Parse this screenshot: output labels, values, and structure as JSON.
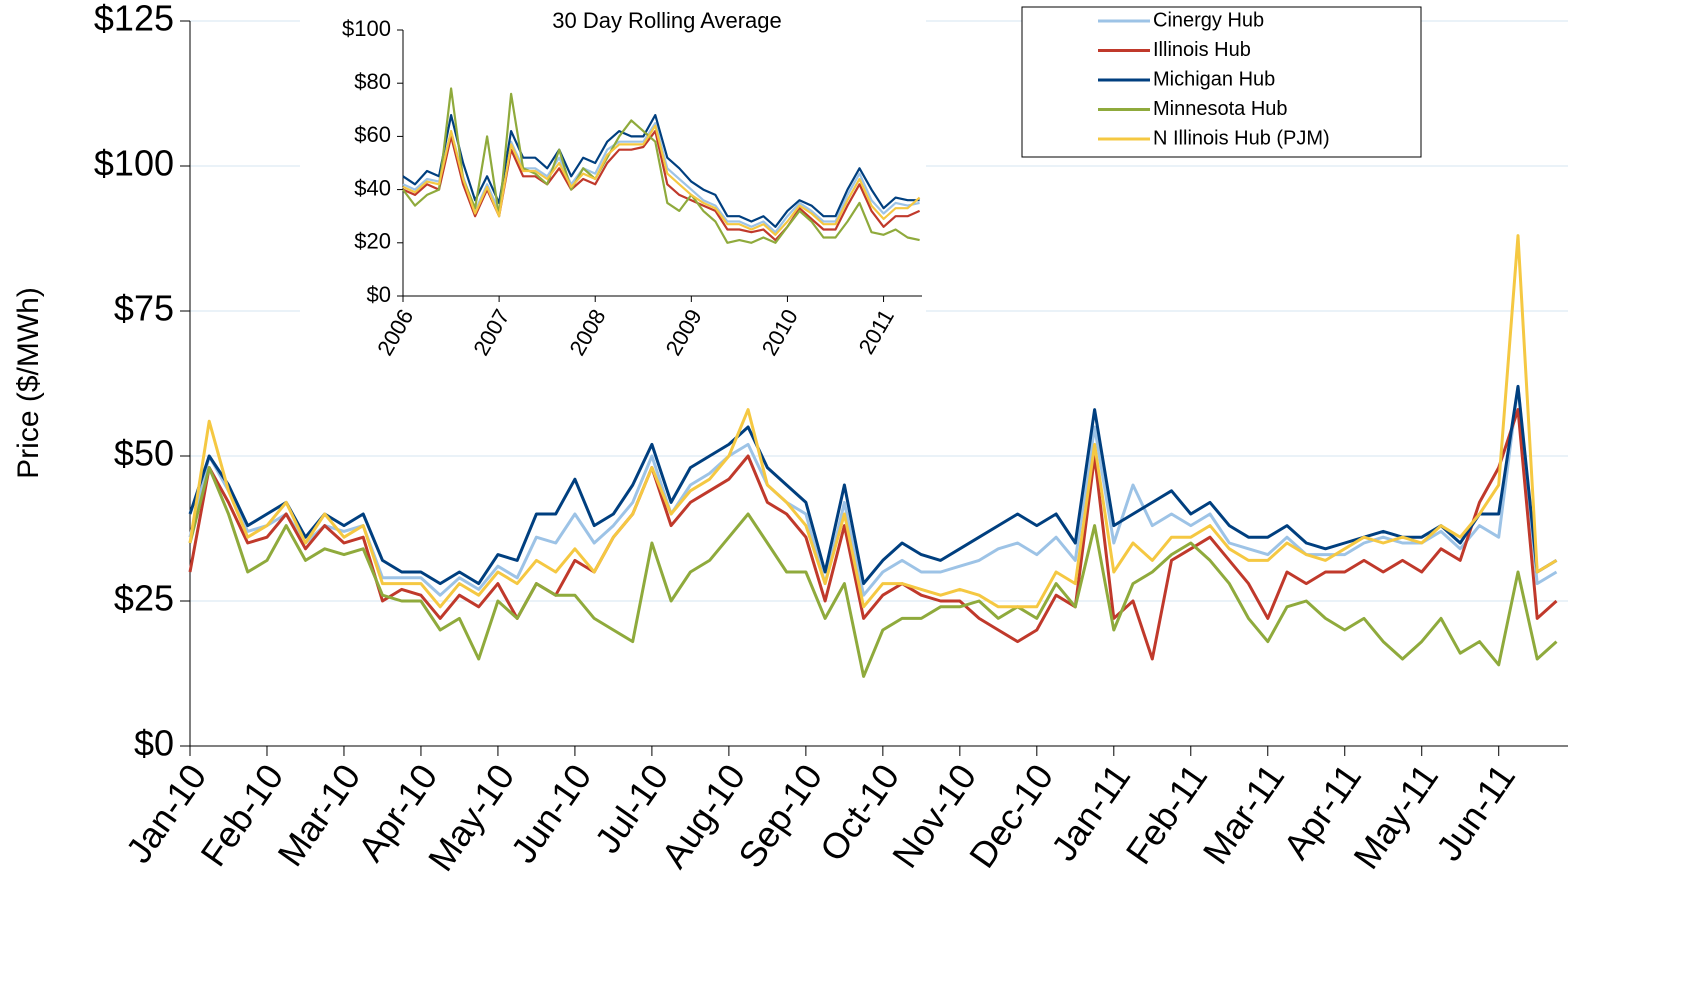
{
  "chart_data": [
    {
      "type": "line",
      "y_label": "Price ($/MWh)",
      "xlim": [
        0,
        17.9
      ],
      "xticks": [
        {
          "value": 0,
          "label": "Jan-10"
        },
        {
          "value": 1,
          "label": "Feb-10"
        },
        {
          "value": 2,
          "label": "Mar-10"
        },
        {
          "value": 3,
          "label": "Apr-10"
        },
        {
          "value": 4,
          "label": "May-10"
        },
        {
          "value": 5,
          "label": "Jun-10"
        },
        {
          "value": 6,
          "label": "Jul-10"
        },
        {
          "value": 7,
          "label": "Aug-10"
        },
        {
          "value": 8,
          "label": "Sep-10"
        },
        {
          "value": 9,
          "label": "Oct-10"
        },
        {
          "value": 10,
          "label": "Nov-10"
        },
        {
          "value": 11,
          "label": "Dec-10"
        },
        {
          "value": 12,
          "label": "Jan-11"
        },
        {
          "value": 13,
          "label": "Feb-11"
        },
        {
          "value": 14,
          "label": "Mar-11"
        },
        {
          "value": 15,
          "label": "Apr-11"
        },
        {
          "value": 16,
          "label": "May-11"
        },
        {
          "value": 17,
          "label": "Jun-11"
        }
      ],
      "ylim": [
        0,
        125
      ],
      "yticks": [
        {
          "value": 0,
          "label": "$0"
        },
        {
          "value": 25,
          "label": "$25"
        },
        {
          "value": 50,
          "label": "$50"
        },
        {
          "value": 75,
          "label": "$75"
        },
        {
          "value": 100,
          "label": "$100"
        },
        {
          "value": 125,
          "label": "$125"
        }
      ],
      "grid": true,
      "legend": "top-right",
      "x": [
        0,
        0.25,
        0.5,
        0.75,
        1,
        1.25,
        1.5,
        1.75,
        2,
        2.25,
        2.5,
        2.75,
        3,
        3.25,
        3.5,
        3.75,
        4,
        4.25,
        4.5,
        4.75,
        5,
        5.25,
        5.5,
        5.75,
        6,
        6.25,
        6.5,
        6.75,
        7,
        7.25,
        7.5,
        7.75,
        8,
        8.25,
        8.5,
        8.75,
        9,
        9.25,
        9.5,
        9.75,
        10,
        10.25,
        10.5,
        10.75,
        11,
        11.25,
        11.5,
        11.75,
        12,
        12.25,
        12.5,
        12.75,
        13,
        13.25,
        13.5,
        13.75,
        14,
        14.25,
        14.5,
        14.75,
        15,
        15.25,
        15.5,
        15.75,
        16,
        16.25,
        16.5,
        16.75,
        17,
        17.25,
        17.5,
        17.75
      ],
      "series": [
        {
          "name": "Cinergy Hub",
          "color": "#9dc3e6",
          "values": [
            36,
            50,
            44,
            37,
            38,
            40,
            35,
            38,
            37,
            38,
            29,
            29,
            29,
            26,
            29,
            27,
            31,
            29,
            36,
            35,
            40,
            35,
            38,
            42,
            50,
            40,
            45,
            47,
            50,
            52,
            45,
            42,
            40,
            28,
            42,
            26,
            30,
            32,
            30,
            30,
            31,
            32,
            34,
            35,
            33,
            36,
            32,
            55,
            35,
            45,
            38,
            40,
            38,
            40,
            35,
            34,
            33,
            36,
            33,
            33,
            33,
            35,
            36,
            35,
            35,
            37,
            34,
            38,
            36,
            62,
            28,
            30
          ]
        },
        {
          "name": "Illinois Hub",
          "color": "#c0392b",
          "values": [
            30,
            48,
            42,
            35,
            36,
            40,
            34,
            38,
            35,
            36,
            25,
            27,
            26,
            22,
            26,
            24,
            28,
            22,
            28,
            26,
            32,
            30,
            36,
            40,
            48,
            38,
            42,
            44,
            46,
            50,
            42,
            40,
            36,
            25,
            38,
            22,
            26,
            28,
            26,
            25,
            25,
            22,
            20,
            18,
            20,
            26,
            24,
            50,
            22,
            25,
            15,
            32,
            34,
            36,
            32,
            28,
            22,
            30,
            28,
            30,
            30,
            32,
            30,
            32,
            30,
            34,
            32,
            42,
            48,
            58,
            22,
            25
          ]
        },
        {
          "name": "Michigan Hub",
          "color": "#003f7f",
          "values": [
            40,
            50,
            45,
            38,
            40,
            42,
            36,
            40,
            38,
            40,
            32,
            30,
            30,
            28,
            30,
            28,
            33,
            32,
            40,
            40,
            46,
            38,
            40,
            45,
            52,
            42,
            48,
            50,
            52,
            55,
            48,
            45,
            42,
            30,
            45,
            28,
            32,
            35,
            33,
            32,
            34,
            36,
            38,
            40,
            38,
            40,
            35,
            58,
            38,
            40,
            42,
            44,
            40,
            42,
            38,
            36,
            36,
            38,
            35,
            34,
            35,
            36,
            37,
            36,
            36,
            38,
            35,
            40,
            40,
            62,
            30,
            32
          ]
        },
        {
          "name": "Minnesota Hub",
          "color": "#8faa3c",
          "values": [
            35,
            48,
            40,
            30,
            32,
            38,
            32,
            34,
            33,
            34,
            26,
            25,
            25,
            20,
            22,
            15,
            25,
            22,
            28,
            26,
            26,
            22,
            20,
            18,
            35,
            25,
            30,
            32,
            36,
            40,
            35,
            30,
            30,
            22,
            28,
            12,
            20,
            22,
            22,
            24,
            24,
            25,
            22,
            24,
            22,
            28,
            24,
            38,
            20,
            28,
            30,
            33,
            35,
            32,
            28,
            22,
            18,
            24,
            25,
            22,
            20,
            22,
            18,
            15,
            18,
            22,
            16,
            18,
            14,
            30,
            15,
            18
          ]
        },
        {
          "name": "N Illinois Hub (PJM)",
          "color": "#f5c842",
          "values": [
            35,
            56,
            44,
            36,
            38,
            42,
            35,
            40,
            36,
            38,
            28,
            28,
            28,
            24,
            28,
            26,
            30,
            28,
            32,
            30,
            34,
            30,
            36,
            40,
            48,
            40,
            44,
            46,
            50,
            58,
            45,
            42,
            38,
            28,
            40,
            24,
            28,
            28,
            27,
            26,
            27,
            26,
            24,
            24,
            24,
            30,
            28,
            52,
            30,
            35,
            32,
            36,
            36,
            38,
            34,
            32,
            32,
            35,
            33,
            32,
            34,
            36,
            35,
            36,
            35,
            38,
            36,
            40,
            45,
            88,
            30,
            32
          ]
        }
      ]
    },
    {
      "type": "line",
      "title": "30 Day Rolling Average",
      "xlim": [
        2006,
        2011.4
      ],
      "xticks": [
        2006,
        2007,
        2008,
        2009,
        2010,
        2011
      ],
      "ylim": [
        0,
        100
      ],
      "yticks": [
        {
          "value": 0,
          "label": "$0"
        },
        {
          "value": 20,
          "label": "$20"
        },
        {
          "value": 40,
          "label": "$40"
        },
        {
          "value": 60,
          "label": "$60"
        },
        {
          "value": 80,
          "label": "$80"
        },
        {
          "value": 100,
          "label": "$100"
        }
      ],
      "grid": false,
      "x": [
        2006,
        2006.125,
        2006.25,
        2006.375,
        2006.5,
        2006.625,
        2006.75,
        2006.875,
        2007,
        2007.125,
        2007.25,
        2007.375,
        2007.5,
        2007.625,
        2007.75,
        2007.875,
        2008,
        2008.125,
        2008.25,
        2008.375,
        2008.5,
        2008.625,
        2008.75,
        2008.875,
        2009,
        2009.125,
        2009.25,
        2009.375,
        2009.5,
        2009.625,
        2009.75,
        2009.875,
        2010,
        2010.125,
        2010.25,
        2010.375,
        2010.5,
        2010.625,
        2010.75,
        2010.875,
        2011,
        2011.125,
        2011.25,
        2011.375
      ],
      "series": [
        {
          "color": "#9dc3e6",
          "values": [
            42,
            40,
            44,
            43,
            62,
            45,
            32,
            42,
            32,
            58,
            48,
            48,
            45,
            52,
            42,
            48,
            46,
            55,
            58,
            58,
            58,
            65,
            48,
            44,
            40,
            36,
            34,
            28,
            28,
            26,
            28,
            24,
            30,
            35,
            32,
            28,
            28,
            38,
            46,
            36,
            31,
            35,
            34,
            35
          ]
        },
        {
          "color": "#c0392b",
          "values": [
            40,
            38,
            42,
            40,
            60,
            42,
            30,
            40,
            30,
            55,
            45,
            45,
            42,
            48,
            40,
            44,
            42,
            50,
            55,
            55,
            56,
            62,
            42,
            38,
            36,
            34,
            32,
            25,
            25,
            24,
            25,
            21,
            26,
            33,
            29,
            25,
            25,
            34,
            42,
            32,
            26,
            30,
            30,
            32
          ]
        },
        {
          "color": "#003f7f",
          "values": [
            45,
            42,
            47,
            45,
            68,
            50,
            36,
            45,
            35,
            62,
            52,
            52,
            48,
            55,
            45,
            52,
            50,
            58,
            62,
            60,
            60,
            68,
            52,
            48,
            43,
            40,
            38,
            30,
            30,
            28,
            30,
            26,
            32,
            36,
            34,
            30,
            30,
            40,
            48,
            40,
            33,
            37,
            36,
            36
          ]
        },
        {
          "color": "#8faa3c",
          "values": [
            40,
            34,
            38,
            40,
            78,
            44,
            33,
            60,
            30,
            76,
            48,
            46,
            42,
            55,
            40,
            48,
            44,
            52,
            60,
            66,
            62,
            58,
            35,
            32,
            38,
            32,
            28,
            20,
            21,
            20,
            22,
            20,
            26,
            32,
            28,
            22,
            22,
            28,
            35,
            24,
            23,
            25,
            22,
            21
          ]
        },
        {
          "color": "#f5c842",
          "values": [
            41,
            39,
            43,
            42,
            62,
            44,
            31,
            41,
            30,
            57,
            47,
            47,
            44,
            50,
            41,
            46,
            44,
            53,
            57,
            57,
            57,
            64,
            46,
            42,
            38,
            35,
            33,
            27,
            27,
            25,
            27,
            23,
            28,
            34,
            31,
            27,
            27,
            36,
            44,
            34,
            29,
            33,
            33,
            37
          ]
        }
      ]
    }
  ]
}
